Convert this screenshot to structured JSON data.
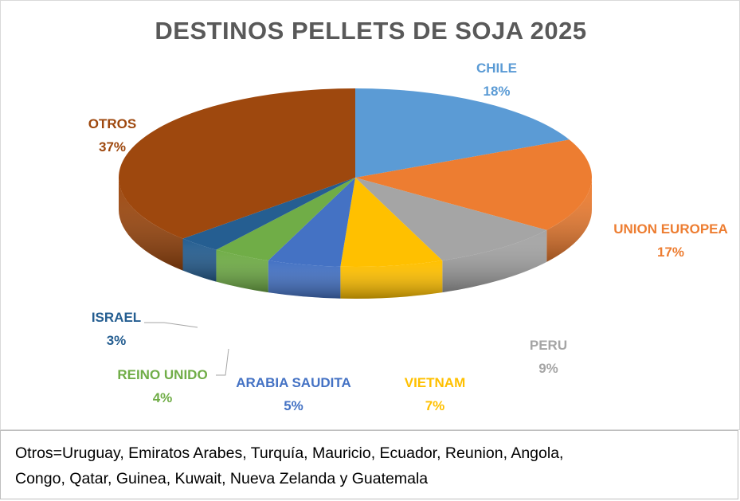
{
  "chart_data": {
    "type": "pie",
    "title": "DESTINOS PELLETS DE SOJA 2025",
    "slices": [
      {
        "label": "CHILE",
        "value": 18,
        "display": "18%",
        "color": "#5b9bd5"
      },
      {
        "label": "UNION EUROPEA",
        "value": 17,
        "display": "17%",
        "color": "#ed7d31"
      },
      {
        "label": "PERU",
        "value": 9,
        "display": "9%",
        "color": "#a5a5a5"
      },
      {
        "label": "VIETNAM",
        "value": 7,
        "display": "7%",
        "color": "#ffc000"
      },
      {
        "label": "ARABIA SAUDITA",
        "value": 5,
        "display": "5%",
        "color": "#4472c4"
      },
      {
        "label": "REINO UNIDO",
        "value": 4,
        "display": "4%",
        "color": "#70ad47"
      },
      {
        "label": "ISRAEL",
        "value": 3,
        "display": "3%",
        "color": "#255e91"
      },
      {
        "label": "OTROS",
        "value": 37,
        "display": "37%",
        "color": "#9e480e"
      }
    ]
  },
  "footnote": {
    "line1": "Otros=Uruguay, Emiratos Arabes, Turquía, Mauricio, Ecuador, Reunion, Angola,",
    "line2": "Congo, Qatar, Guinea, Kuwait, Nueva Zelanda y Guatemala"
  }
}
